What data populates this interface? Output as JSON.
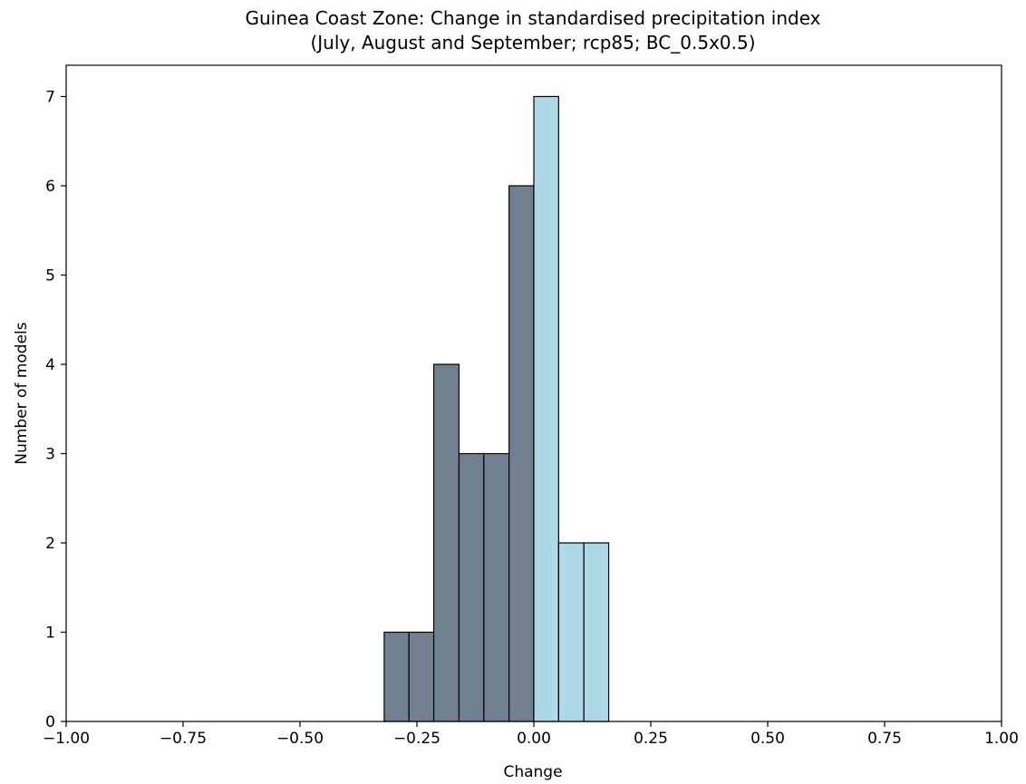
{
  "chart_data": {
    "type": "bar",
    "title": "Guinea Coast Zone: Change in standardised precipitation index",
    "subtitle": "(July, August and September; rcp85; BC_0.5x0.5)",
    "xlabel": "Change",
    "ylabel": "Number of models",
    "xlim": [
      -1.0,
      1.0
    ],
    "ylim": [
      0,
      7.35
    ],
    "xticks": [
      "−1.00",
      "−0.75",
      "−0.50",
      "−0.25",
      "0.00",
      "0.25",
      "0.50",
      "0.75",
      "1.00"
    ],
    "xtick_values": [
      -1.0,
      -0.75,
      -0.5,
      -0.25,
      0.0,
      0.25,
      0.5,
      0.75,
      1.0
    ],
    "yticks": [
      "0",
      "1",
      "2",
      "3",
      "4",
      "5",
      "6",
      "7"
    ],
    "ytick_values": [
      0,
      1,
      2,
      3,
      4,
      5,
      6,
      7
    ],
    "grid": false,
    "colors": {
      "negative": "#708090",
      "positive": "#add8e6",
      "edge": "#000000"
    },
    "bins": [
      {
        "left": -0.32,
        "right": -0.267,
        "value": 1,
        "group": "negative"
      },
      {
        "left": -0.267,
        "right": -0.214,
        "value": 1,
        "group": "negative"
      },
      {
        "left": -0.214,
        "right": -0.16,
        "value": 4,
        "group": "negative"
      },
      {
        "left": -0.16,
        "right": -0.107,
        "value": 3,
        "group": "negative"
      },
      {
        "left": -0.107,
        "right": -0.053,
        "value": 3,
        "group": "negative"
      },
      {
        "left": -0.053,
        "right": 0.0,
        "value": 6,
        "group": "negative"
      },
      {
        "left": 0.0,
        "right": 0.053,
        "value": 7,
        "group": "positive"
      },
      {
        "left": 0.053,
        "right": 0.107,
        "value": 2,
        "group": "positive"
      },
      {
        "left": 0.107,
        "right": 0.16,
        "value": 2,
        "group": "positive"
      },
      {
        "left": 0.16,
        "right": 0.213,
        "value": 0,
        "group": "positive"
      },
      {
        "left": 0.213,
        "right": 0.267,
        "value": 0,
        "group": "positive"
      },
      {
        "left": 0.267,
        "right": 0.32,
        "value": 0,
        "group": "positive"
      }
    ]
  }
}
